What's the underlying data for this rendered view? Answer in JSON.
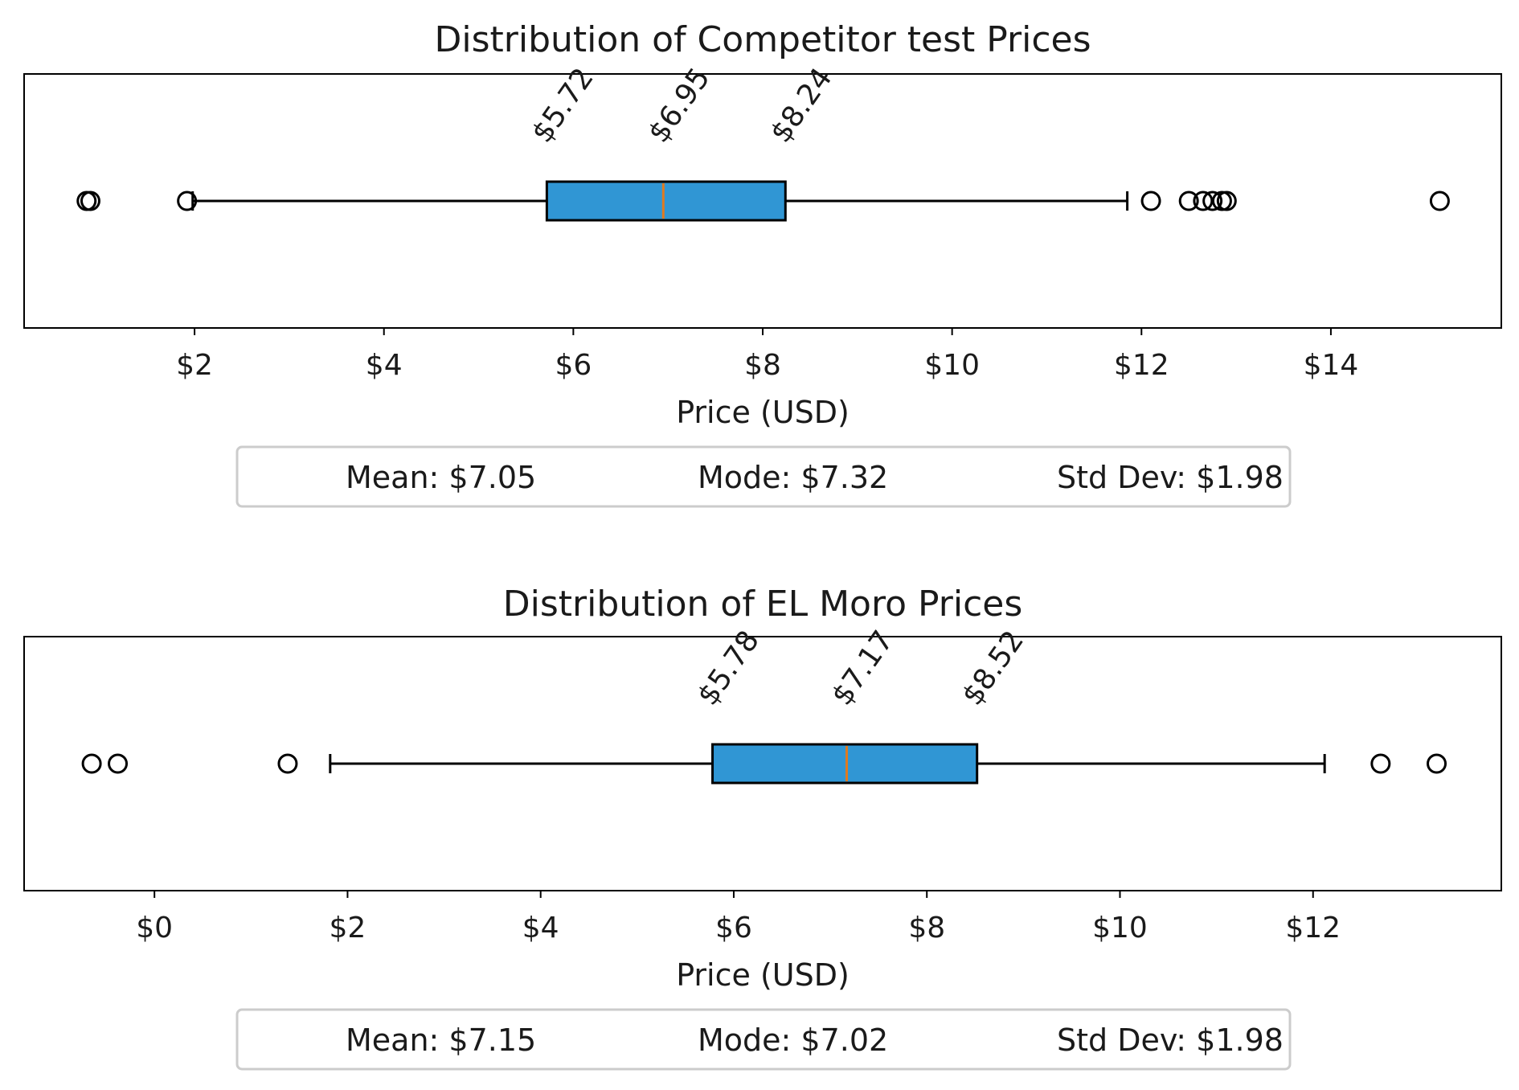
{
  "chart_data": [
    {
      "type": "box",
      "title": "Distribution of Competitor test Prices",
      "xlabel": "Price (USD)",
      "xlim": [
        0.2,
        15.8
      ],
      "xticks": [
        2,
        4,
        6,
        8,
        10,
        12,
        14
      ],
      "tick_format": "$",
      "box": {
        "q1": 5.72,
        "median": 6.95,
        "q3": 8.24,
        "whisker_low": 1.98,
        "whisker_high": 11.85
      },
      "quartile_labels": [
        "$5.72",
        "$6.95",
        "$8.24"
      ],
      "outliers": [
        0.86,
        0.9,
        1.92,
        12.1,
        12.5,
        12.65,
        12.75,
        12.85,
        12.9,
        15.15
      ],
      "stats": [
        "Mean: $7.05",
        "Mode: $7.32",
        "Std Dev: $1.98"
      ],
      "box_color": "#3096d4",
      "median_color": "#e07a1f"
    },
    {
      "type": "box",
      "title": "Distribution of EL Moro Prices",
      "xlabel": "Price (USD)",
      "xlim": [
        -1.35,
        13.95
      ],
      "xticks": [
        0,
        2,
        4,
        6,
        8,
        10,
        12
      ],
      "tick_format": "$",
      "box": {
        "q1": 5.78,
        "median": 7.17,
        "q3": 8.52,
        "whisker_low": 1.82,
        "whisker_high": 12.12
      },
      "quartile_labels": [
        "$5.78",
        "$7.17",
        "$8.52"
      ],
      "outliers": [
        -0.65,
        -0.38,
        1.38,
        12.7,
        13.28
      ],
      "stats": [
        "Mean: $7.15",
        "Mode: $7.02",
        "Std Dev: $1.98"
      ],
      "box_color": "#3096d4",
      "median_color": "#e07a1f"
    }
  ]
}
